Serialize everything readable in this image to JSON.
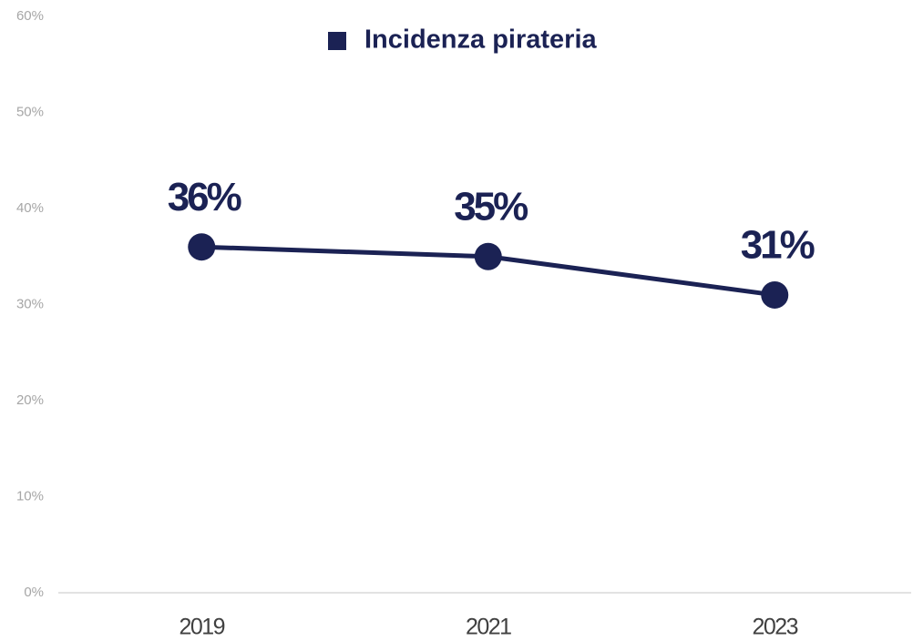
{
  "chart_data": {
    "type": "line",
    "categories": [
      "2019",
      "2021",
      "2023"
    ],
    "series": [
      {
        "name": "Incidenza pirateria",
        "color": "#1b2254",
        "values": [
          36,
          35,
          31
        ],
        "value_labels": [
          "36%",
          "35%",
          "31%"
        ]
      }
    ],
    "ylim": [
      0,
      60
    ],
    "yticks": [
      {
        "value": 0,
        "label": "0%"
      },
      {
        "value": 10,
        "label": "10%"
      },
      {
        "value": 20,
        "label": "20%"
      },
      {
        "value": 30,
        "label": "30%"
      },
      {
        "value": 40,
        "label": "40%"
      },
      {
        "value": 50,
        "label": "50%"
      },
      {
        "value": 60,
        "label": "60%"
      }
    ],
    "grid": false,
    "legend": "top"
  }
}
